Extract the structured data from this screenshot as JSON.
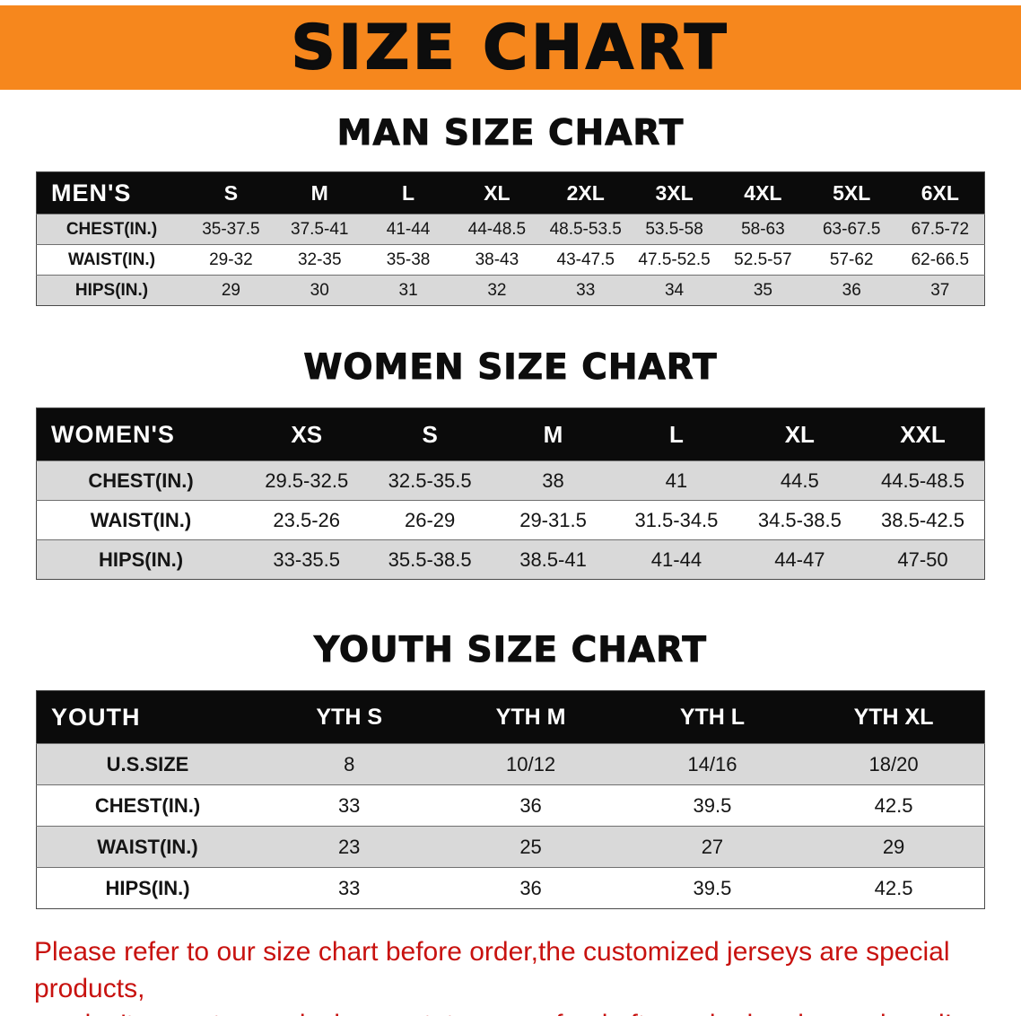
{
  "banner": {
    "title": "SIZE CHART"
  },
  "colors": {
    "banner_bg": "#f6871d",
    "table_header_bg": "#0b0b0b",
    "row_alt_bg": "#d9d9d9",
    "footer_text": "#c8120f"
  },
  "sections": [
    {
      "id": "men",
      "heading": "MAN SIZE CHART",
      "columns": [
        "MEN'S",
        "S",
        "M",
        "L",
        "XL",
        "2XL",
        "3XL",
        "4XL",
        "5XL",
        "6XL"
      ],
      "rows": [
        [
          "CHEST(IN.)",
          "35-37.5",
          "37.5-41",
          "41-44",
          "44-48.5",
          "48.5-53.5",
          "53.5-58",
          "58-63",
          "63-67.5",
          "67.5-72"
        ],
        [
          "WAIST(IN.)",
          "29-32",
          "32-35",
          "35-38",
          "38-43",
          "43-47.5",
          "47.5-52.5",
          "52.5-57",
          "57-62",
          "62-66.5"
        ],
        [
          "HIPS(IN.)",
          "29",
          "30",
          "31",
          "32",
          "33",
          "34",
          "35",
          "36",
          "37"
        ]
      ]
    },
    {
      "id": "women",
      "heading": "WOMEN SIZE CHART",
      "columns": [
        "WOMEN'S",
        "XS",
        "S",
        "M",
        "L",
        "XL",
        "XXL"
      ],
      "rows": [
        [
          "CHEST(IN.)",
          "29.5-32.5",
          "32.5-35.5",
          "38",
          "41",
          "44.5",
          "44.5-48.5"
        ],
        [
          "WAIST(IN.)",
          "23.5-26",
          "26-29",
          "29-31.5",
          "31.5-34.5",
          "34.5-38.5",
          "38.5-42.5"
        ],
        [
          "HIPS(IN.)",
          "33-35.5",
          "35.5-38.5",
          "38.5-41",
          "41-44",
          "44-47",
          "47-50"
        ]
      ]
    },
    {
      "id": "youth",
      "heading": "YOUTH SIZE CHART",
      "columns": [
        "YOUTH",
        "YTH S",
        "YTH M",
        "YTH L",
        "YTH XL"
      ],
      "rows": [
        [
          "U.S.SIZE",
          "8",
          "10/12",
          "14/16",
          "18/20"
        ],
        [
          "CHEST(IN.)",
          "33",
          "36",
          "39.5",
          "42.5"
        ],
        [
          "WAIST(IN.)",
          "23",
          "25",
          "27",
          "29"
        ],
        [
          "HIPS(IN.)",
          "33",
          "36",
          "39.5",
          "42.5"
        ]
      ]
    }
  ],
  "footer": {
    "line1": "Please refer to our size chart before order,the customized jerseys are special products,",
    "line2": "we don't accept cancel, change, teturn or refund after order has been placed!"
  }
}
